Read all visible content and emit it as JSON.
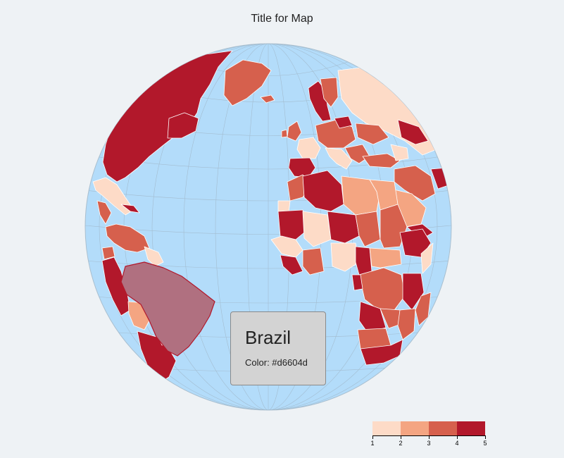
{
  "title": "Title for Map",
  "colors": {
    "background": "#eef2f5",
    "ocean": "#b3dcfa",
    "graticule": "#9fb5c6",
    "border": "#ffffff",
    "highlight": "#b07080"
  },
  "tooltip": {
    "country": "Brazil",
    "color_label": "Color: #d6604d"
  },
  "legend": {
    "bins": [
      {
        "color": "#fddbc7"
      },
      {
        "color": "#f4a582"
      },
      {
        "color": "#d6604d"
      },
      {
        "color": "#b2182b"
      }
    ],
    "ticks": [
      "1",
      "2",
      "3",
      "4",
      "5"
    ]
  }
}
